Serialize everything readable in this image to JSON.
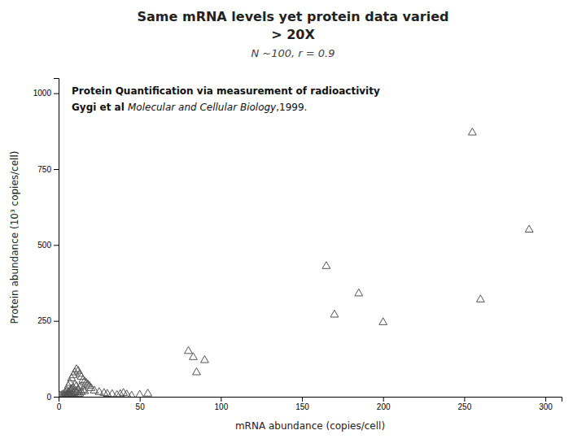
{
  "chart_data": {
    "type": "scatter",
    "title": [
      "Same mRNA levels yet protein data varied",
      "> 20X"
    ],
    "subtitle": "N ~100, r = 0.9",
    "annotations": [
      "Protein Quantification via measurement of radioactivity",
      "Gygi et al ",
      "Molecular and Cellular Biology",
      ",1999."
    ],
    "x_label": "mRNA abundance (copies/cell)",
    "y_label": "Protein abundance (10³ copies/cell)",
    "x": [
      1,
      2,
      3,
      3,
      4,
      4,
      4,
      5,
      5,
      5,
      5,
      6,
      6,
      6,
      6,
      7,
      7,
      7,
      7,
      8,
      8,
      8,
      8,
      9,
      9,
      9,
      9,
      10,
      10,
      10,
      10,
      11,
      11,
      11,
      12,
      12,
      12,
      13,
      13,
      13,
      14,
      14,
      15,
      15,
      16,
      16,
      17,
      18,
      19,
      20,
      22,
      25,
      28,
      30,
      33,
      36,
      38,
      40,
      42,
      45,
      50,
      55,
      80,
      83,
      85,
      90,
      165,
      170,
      185,
      200,
      255,
      260,
      290
    ],
    "values": [
      3,
      5,
      8,
      2,
      12,
      5,
      2,
      20,
      8,
      3,
      1,
      35,
      15,
      7,
      2,
      45,
      20,
      10,
      4,
      60,
      25,
      9,
      3,
      70,
      30,
      12,
      5,
      80,
      40,
      16,
      6,
      90,
      35,
      15,
      85,
      22,
      8,
      75,
      30,
      10,
      65,
      15,
      55,
      22,
      50,
      18,
      45,
      40,
      35,
      28,
      20,
      15,
      12,
      9,
      8,
      5,
      8,
      12,
      7,
      3,
      6,
      10,
      150,
      130,
      80,
      120,
      430,
      270,
      340,
      245,
      870,
      320,
      550
    ],
    "color": "#555555",
    "marker": "triangle",
    "xlim": [
      0,
      310
    ],
    "ylim": [
      0,
      1050
    ],
    "xticks": [
      0,
      50,
      100,
      150,
      200,
      250,
      300
    ],
    "yticks": [
      0,
      250,
      500,
      750,
      1000
    ],
    "grid": false
  }
}
